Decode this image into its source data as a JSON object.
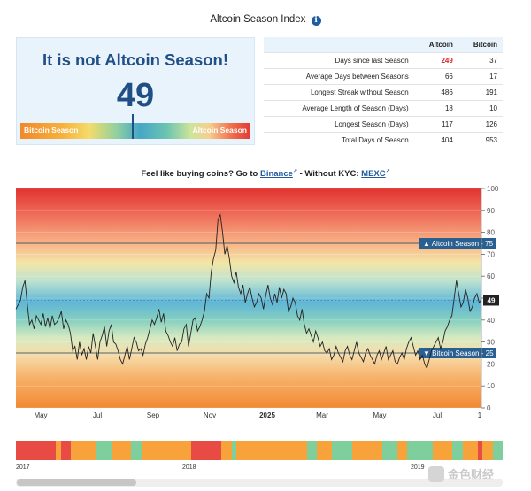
{
  "header": {
    "title": "Altcoin Season Index",
    "info_icon": "info-icon"
  },
  "status": {
    "headline": "It is not Altcoin Season!",
    "index_value": "49",
    "gauge_left_label": "Bitcoin Season",
    "gauge_right_label": "Altcoin Season",
    "gauge_level": 49
  },
  "stats": {
    "col_altcoin": "Altcoin",
    "col_bitcoin": "Bitcoin",
    "rows": [
      {
        "name": "Days since last Season",
        "altcoin": "249",
        "bitcoin": "37"
      },
      {
        "name": "Average Days between Seasons",
        "altcoin": "66",
        "bitcoin": "17"
      },
      {
        "name": "Longest Streak without Season",
        "altcoin": "486",
        "bitcoin": "191"
      },
      {
        "name": "Average Length of Season (Days)",
        "altcoin": "18",
        "bitcoin": "10"
      },
      {
        "name": "Longest Season (Days)",
        "altcoin": "117",
        "bitcoin": "126"
      },
      {
        "name": "Total Days of Season",
        "altcoin": "404",
        "bitcoin": "953"
      }
    ],
    "highlight_color": "#d7262b"
  },
  "promo": {
    "prefix": "Feel like buying coins? Go to",
    "link1": "Binance",
    "mid": "- Without KYC:",
    "link2": "MEXC"
  },
  "chart_data": {
    "type": "line",
    "x_ticks": [
      "May",
      "Jul",
      "Sep",
      "Nov",
      "2025",
      "Mar",
      "May",
      "Jul",
      "1"
    ],
    "y_ticks": [
      "0",
      "10",
      "20",
      "30",
      "40",
      "50",
      "60",
      "70",
      "80",
      "90",
      "100"
    ],
    "ylim": [
      0,
      100
    ],
    "current_value": "49",
    "reference_lines": [
      {
        "label": "Altcoin Season",
        "value": 75,
        "tag": "Altcoin Season - 75"
      },
      {
        "label": "Bitcoin Season",
        "value": 25,
        "tag": "Bitcoin Season - 25"
      }
    ],
    "line_color": "#222222",
    "series": [
      {
        "values": [
          45,
          47,
          49,
          55,
          58,
          47,
          38,
          40,
          36,
          42,
          40,
          38,
          43,
          37,
          41,
          36,
          42,
          38,
          39,
          41,
          44,
          36,
          40,
          38,
          34,
          26,
          28,
          22,
          30,
          24,
          27,
          22,
          28,
          25,
          34,
          28,
          22,
          30,
          33,
          37,
          28,
          35,
          38,
          30,
          29,
          26,
          22,
          20,
          24,
          28,
          22,
          27,
          32,
          30,
          26,
          27,
          24,
          29,
          32,
          36,
          40,
          38,
          41,
          45,
          39,
          43,
          35,
          33,
          30,
          28,
          32,
          26,
          29,
          30,
          36,
          38,
          28,
          34,
          40,
          41,
          35,
          37,
          40,
          44,
          52,
          50,
          62,
          68,
          72,
          86,
          88,
          80,
          70,
          74,
          68,
          60,
          57,
          62,
          55,
          52,
          56,
          48,
          52,
          55,
          50,
          46,
          48,
          52,
          50,
          45,
          51,
          56,
          50,
          47,
          52,
          48,
          55,
          50,
          54,
          52,
          44,
          46,
          50,
          48,
          42,
          40,
          45,
          38,
          34,
          36,
          33,
          30,
          35,
          32,
          28,
          30,
          26,
          25,
          27,
          22,
          24,
          28,
          25,
          23,
          21,
          26,
          28,
          24,
          22,
          26,
          30,
          25,
          23,
          21,
          25,
          27,
          24,
          22,
          20,
          24,
          26,
          22,
          25,
          28,
          22,
          24,
          26,
          21,
          20,
          23,
          25,
          22,
          27,
          30,
          32,
          28,
          24,
          26,
          22,
          24,
          20,
          18,
          22,
          26,
          28,
          30,
          32,
          27,
          30,
          35,
          37,
          40,
          42,
          50,
          58,
          52,
          46,
          48,
          54,
          50,
          44,
          46,
          50,
          52,
          48,
          49
        ]
      }
    ]
  },
  "timeline": {
    "labels": [
      "2017",
      "2018",
      "2019"
    ],
    "blocks": [
      [
        "#e84a44",
        8
      ],
      [
        "#f7a23a",
        1
      ],
      [
        "#e84a44",
        2
      ],
      [
        "#f7a23a",
        5
      ],
      [
        "#7fcf9c",
        3
      ],
      [
        "#f7a23a",
        4
      ],
      [
        "#7fcf9c",
        2
      ],
      [
        "#f7a23a",
        10
      ],
      [
        "#e84a44",
        6
      ],
      [
        "#f7a23a",
        2
      ],
      [
        "#7fcf9c",
        1
      ],
      [
        "#f7a23a",
        14
      ],
      [
        "#7fcf9c",
        2
      ],
      [
        "#f7a23a",
        3
      ],
      [
        "#7fcf9c",
        4
      ],
      [
        "#f7a23a",
        6
      ],
      [
        "#7fcf9c",
        3
      ],
      [
        "#f7a23a",
        2
      ],
      [
        "#7fcf9c",
        5
      ],
      [
        "#f7a23a",
        4
      ],
      [
        "#7fcf9c",
        2
      ],
      [
        "#f7a23a",
        3
      ],
      [
        "#e84a44",
        1
      ],
      [
        "#f7a23a",
        2
      ],
      [
        "#7fcf9c",
        2
      ]
    ]
  },
  "watermark": "金色财经"
}
